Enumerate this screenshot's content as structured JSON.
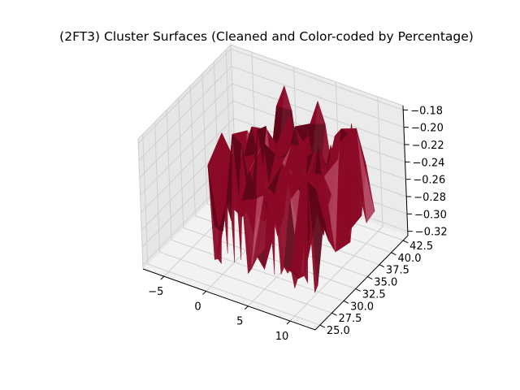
{
  "chart_data": {
    "type": "surface3d",
    "title": "(2FT3) Cluster Surfaces (Cleaned and Color-coded by Percentage)",
    "xlabel": "",
    "ylabel": "",
    "zlabel": "",
    "grid": true,
    "x_ticks": [
      "−5",
      "0",
      "5",
      "10"
    ],
    "y_ticks": [
      "25.0",
      "27.5",
      "30.0",
      "32.5",
      "35.0",
      "37.5",
      "40.0",
      "42.5"
    ],
    "z_ticks": [
      "−0.32",
      "−0.30",
      "−0.28",
      "−0.26",
      "−0.24",
      "−0.22",
      "−0.20",
      "−0.18"
    ],
    "x_range": [
      -7.5,
      13
    ],
    "y_range": [
      24,
      43.5
    ],
    "z_range": [
      -0.325,
      -0.175
    ],
    "surface_color": "#8b0a26",
    "surface_color_dark": "#5e0618",
    "surface_color_light": "#b0405a",
    "pane_color": "#f2f2f2"
  }
}
